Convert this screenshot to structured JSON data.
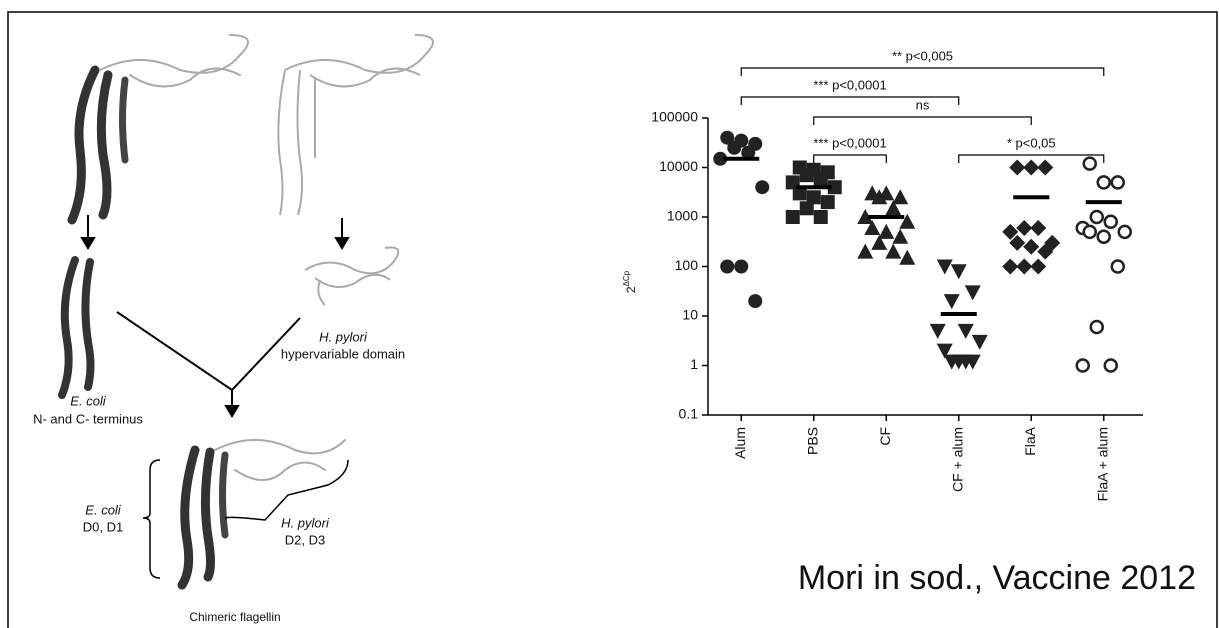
{
  "diagram": {
    "ecoli_label": "E. coli",
    "ecoli_desc": "N- and C- terminus",
    "hpylori_label": "H. pylori",
    "hpylori_desc": "hypervariable domain",
    "chimera_ecoli_label": "E. coli",
    "chimera_ecoli_desc": "D0, D1",
    "chimera_hpylori_label": "H. pylori",
    "chimera_hpylori_desc": "D2, D3",
    "chimera_caption": "Chimeric flagellin"
  },
  "citation": "Mori in sod., Vaccine 2012",
  "chart_data": {
    "type": "scatter",
    "ylabel": "2",
    "ylabel_superscript": "ΔCp",
    "log_scale": true,
    "categories": [
      "Alum",
      "PBS",
      "CF",
      "CF + alum",
      "FlaA",
      "FlaA + alum"
    ],
    "markers": [
      "circle",
      "square",
      "triangle-up",
      "triangle-down",
      "diamond",
      "open-circle"
    ],
    "color": "#222222",
    "values": [
      [
        40000,
        35000,
        30000,
        25000,
        20000,
        15000,
        4000,
        100,
        100,
        20
      ],
      [
        10000,
        9000,
        8000,
        7000,
        6000,
        5000,
        4000,
        3000,
        2500,
        2000,
        1500,
        1000,
        1000
      ],
      [
        3000,
        3000,
        2500,
        2500,
        1500,
        1000,
        800,
        600,
        500,
        400,
        300,
        200,
        200,
        150
      ],
      [
        100,
        80,
        30,
        20,
        5,
        5,
        3,
        2,
        1.2,
        1.2,
        1.2,
        1.2
      ],
      [
        10000,
        10000,
        10000,
        600,
        600,
        500,
        300,
        300,
        250,
        200,
        100,
        100,
        100
      ],
      [
        12000,
        5000,
        5000,
        1000,
        800,
        600,
        500,
        500,
        400,
        100,
        6,
        1,
        1
      ]
    ],
    "means": [
      15000,
      4000,
      1000,
      11,
      2500,
      2000
    ],
    "ylim": [
      0.1,
      100000
    ],
    "yticks": [
      0.1,
      1,
      10,
      100,
      1000,
      10000,
      100000
    ],
    "annotations": [
      {
        "label": "** p<0,005",
        "between": [
          0,
          5
        ]
      },
      {
        "label": "*** p<0,0001",
        "between": [
          0,
          3
        ]
      },
      {
        "label": "ns",
        "between": [
          1,
          4
        ]
      },
      {
        "label": "*** p<0,0001",
        "between": [
          1,
          2
        ]
      },
      {
        "label": "* p<0,05",
        "between": [
          3,
          5
        ]
      }
    ]
  }
}
